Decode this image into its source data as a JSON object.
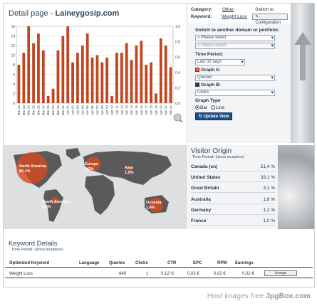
{
  "page": {
    "title_prefix": "Detail page - ",
    "title_domain": "Laineygosip.com"
  },
  "category": {
    "category_label": "Category:",
    "category_value": "Other",
    "switch_to": "Switch to",
    "keyword_label": "Keyword:",
    "keyword_value": "Weight Loss",
    "configuration_label": "Configuration"
  },
  "form": {
    "switch_heading": "Switch to another domain or portfolio:",
    "domain_select": "» Please select",
    "portfolio_select": "» Please select",
    "time_period_heading": "Time Period:",
    "time_period_value": "Last 32 days",
    "graph_a_heading": "Graph A:",
    "graph_a_value": "Queries",
    "graph_b_heading": "Graph B:",
    "graph_b_value": "Clicks",
    "graph_type_heading": "Graph Type",
    "bar_label": "Bar",
    "line_label": "Line",
    "update_button": "Update View"
  },
  "chart_data": {
    "type": "bar",
    "categories": [
      "Mar 22",
      "Mar 23",
      "Mar 24",
      "Mar 25",
      "Mar 26",
      "Mar 27",
      "Mar 28",
      "Mar 29",
      "Mar 30",
      "Mar 31",
      "Apr 01",
      "Apr 02",
      "Apr 03",
      "Apr 04",
      "Apr 05",
      "Apr 06",
      "Apr 07",
      "Apr 08",
      "Apr 09",
      "Apr 10",
      "Apr 11",
      "Apr 12",
      "Apr 13",
      "Apr 14",
      "Apr 15",
      "Apr 16",
      "Apr 17",
      "Apr 18",
      "Apr 19",
      "Apr 20",
      "Apr 21",
      "Apr 22"
    ],
    "series": [
      {
        "values": [
          8,
          10.5,
          16,
          12.5,
          14.5,
          11,
          1.5,
          3,
          11,
          14,
          16,
          8.5,
          10.5,
          12,
          14.5,
          9.5,
          10,
          8.5,
          9.5,
          1.5,
          10.5,
          10.5,
          12.5,
          9,
          12,
          13,
          8,
          8.5,
          2,
          13.5,
          12,
          7.5
        ]
      }
    ],
    "y_left": {
      "ticks": [
        "0",
        "2",
        "4",
        "6",
        "8",
        "10",
        "12",
        "14",
        "16"
      ],
      "min": 0,
      "max": 16
    },
    "y_right": {
      "ticks": [
        "0.0",
        "0.2",
        "0.4",
        "0.6",
        "0.8",
        "1.0"
      ],
      "min": 0,
      "max": 1
    },
    "bar_color": "#c2451f",
    "grid": true
  },
  "map": {
    "regions": [
      {
        "name": "North America",
        "pct": "85,1%"
      },
      {
        "name": "Europe",
        "pct": "6,2%"
      },
      {
        "name": "Asia",
        "pct": "1,0%"
      },
      {
        "name": "South America",
        "pct": "1,4%"
      },
      {
        "name": "Oceania",
        "pct": "1,4%"
      }
    ]
  },
  "visitor": {
    "title": "Visitor Origin",
    "subtitle": "Time Period: (since inception)",
    "rows": [
      {
        "country": "Canada (en)",
        "pct": "51,4 %"
      },
      {
        "country": "United States",
        "pct": "33,1 %"
      },
      {
        "country": "Great Britain",
        "pct": "3,1 %"
      },
      {
        "country": "Australia",
        "pct": "1,8 %"
      },
      {
        "country": "Germany",
        "pct": "1,2 %"
      },
      {
        "country": "France",
        "pct": "1,0 %"
      }
    ]
  },
  "keywords": {
    "title": "Keyword Details",
    "subtitle": "Time Period: (since inception)",
    "headers": {
      "keyword": "Optimized Keyword",
      "language": "Language",
      "queries": "Queries",
      "clicks": "Clicks",
      "ctr": "CTR",
      "epc": "EPC",
      "rpm": "RPM",
      "earnings": "Earnings"
    },
    "row": {
      "keyword": "Weight Loss",
      "language": "",
      "queries": "849",
      "clicks": "1",
      "ctr": "0,12 %",
      "epc": "0,02 €",
      "rpm": "0,02 €",
      "earnings": "0,02 €",
      "action": "change"
    }
  },
  "footer": {
    "text": "Host images free ",
    "brand": "JpgBox.com"
  }
}
